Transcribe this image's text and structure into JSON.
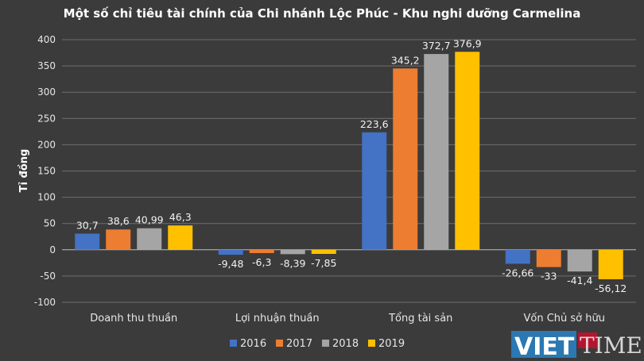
{
  "chart_data": {
    "type": "bar",
    "title": "Một số chỉ tiêu tài chính của Chi nhánh Lộc Phúc - Khu nghi dưỡng Carmelina",
    "ylabel": "Tỉ đồng",
    "xlabel": "",
    "categories": [
      "Doanh thu thuần",
      "Lợi nhuận thuần",
      "Tổng tài sản",
      "Vốn Chủ sở hữu"
    ],
    "series": [
      {
        "name": "2016",
        "color": "#4472c4",
        "values": [
          30.7,
          -9.48,
          223.6,
          -26.66
        ],
        "labels": [
          "30,7",
          "-9,48",
          "223,6",
          "-26,66"
        ]
      },
      {
        "name": "2017",
        "color": "#ed7d31",
        "values": [
          38.6,
          -6.3,
          345.2,
          -33
        ],
        "labels": [
          "38,6",
          "-6,3",
          "345,2",
          "-33"
        ]
      },
      {
        "name": "2018",
        "color": "#a5a5a5",
        "values": [
          40.99,
          -8.39,
          372.7,
          -41.4
        ],
        "labels": [
          "40,99",
          "-8,39",
          "372,7",
          "-41,4"
        ]
      },
      {
        "name": "2019",
        "color": "#ffc000",
        "values": [
          46.3,
          -7.85,
          376.9,
          -56.12
        ],
        "labels": [
          "46,3",
          "-7,85",
          "376,9",
          "-56,12"
        ]
      }
    ],
    "ylim": [
      -100,
      400
    ],
    "yticks": [
      -100,
      -50,
      0,
      50,
      100,
      150,
      200,
      250,
      300,
      350,
      400
    ],
    "grid": true,
    "legend_position": "bottom"
  },
  "watermark": {
    "text": "VIETTIMES",
    "colors": {
      "viet": "#ffffff",
      "times": "#ffffff",
      "badge": "#c8102e"
    }
  }
}
